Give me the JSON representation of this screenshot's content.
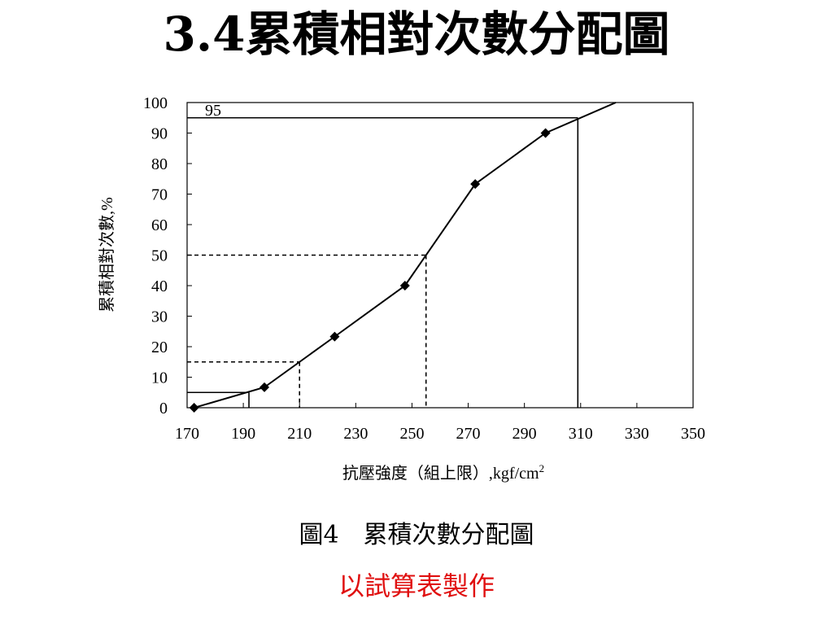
{
  "slide": {
    "title": "3.4累積相對次數分配圖",
    "caption": "圖4　累積次數分配圖",
    "subcaption": "以試算表製作"
  },
  "chart_data": {
    "type": "line",
    "ylabel": "累積相對次數,%",
    "xlabel": "抗壓強度（組上限）,kgf/cm",
    "xlabel_superscript": "2",
    "xlim": [
      170,
      350
    ],
    "ylim": [
      0,
      100
    ],
    "xticks": [
      170,
      190,
      210,
      230,
      250,
      270,
      290,
      310,
      330,
      350
    ],
    "yticks": [
      0,
      10,
      20,
      30,
      40,
      50,
      60,
      70,
      80,
      90,
      100
    ],
    "grid": false,
    "series": [
      {
        "x": [
          172.5,
          197.5,
          222.5,
          247.5,
          272.5,
          297.5,
          322.5
        ],
        "y": [
          0,
          6.7,
          23.3,
          40,
          73.3,
          90,
          100
        ],
        "marker_visible": [
          true,
          true,
          true,
          true,
          true,
          true,
          false
        ]
      }
    ],
    "reference_lines": [
      {
        "percent": 5,
        "x": 192,
        "style": "solid"
      },
      {
        "percent": 15,
        "x": 210,
        "style": "dashed"
      },
      {
        "percent": 50,
        "x": 255,
        "style": "dashed"
      },
      {
        "percent": 95,
        "x": 309,
        "style": "solid"
      }
    ],
    "annotation": "95",
    "colors": {
      "line": "#000000",
      "frame": "#000000"
    }
  },
  "colors": {
    "subcaption": "#e01010"
  }
}
